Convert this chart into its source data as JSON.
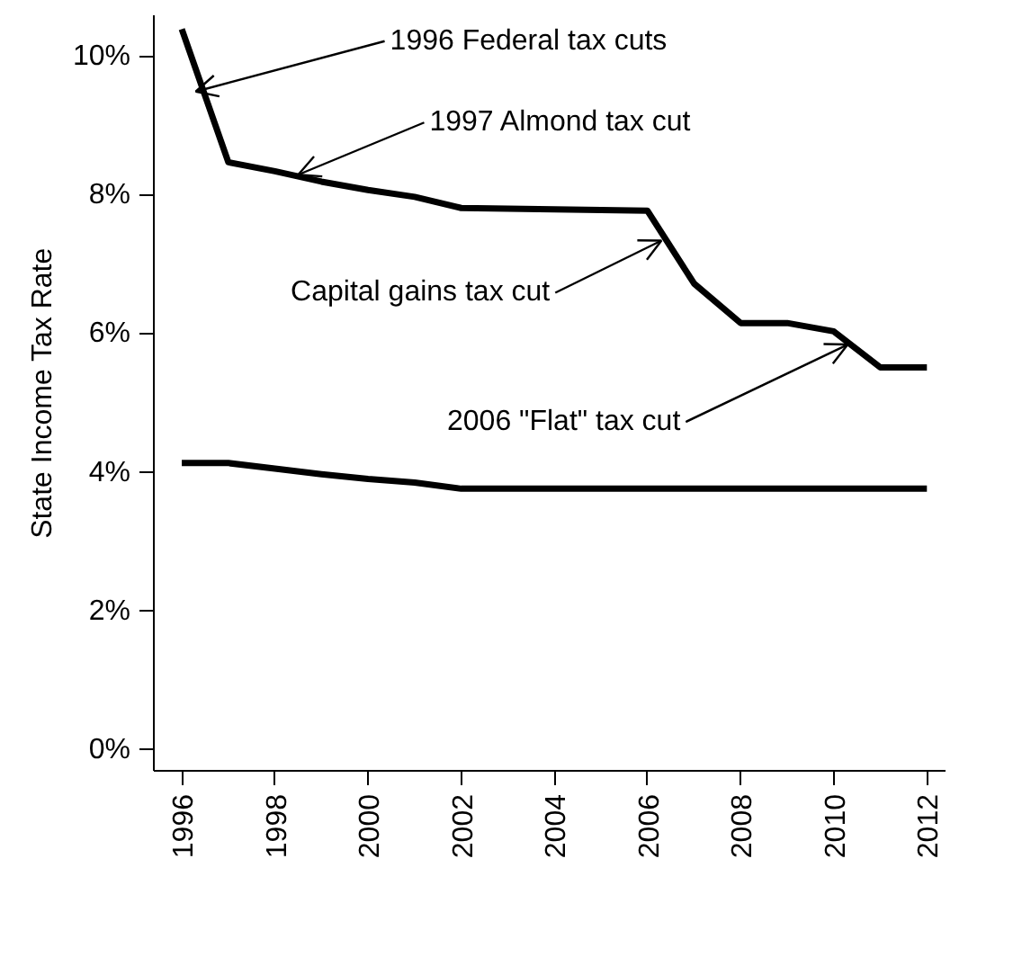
{
  "chart_data": {
    "type": "line",
    "ylabel": "State Income Tax Rate",
    "x": [
      1996,
      1997,
      1998,
      1999,
      2000,
      2001,
      2002,
      2003,
      2004,
      2005,
      2006,
      2007,
      2008,
      2009,
      2010,
      2011,
      2012
    ],
    "series": [
      {
        "color": "#000000",
        "values": [
          10.4,
          8.48,
          8.35,
          8.2,
          8.08,
          7.98,
          7.82,
          7.81,
          7.8,
          7.79,
          7.78,
          6.73,
          6.16,
          6.16,
          6.04,
          5.52,
          5.52
        ]
      },
      {
        "color": "#000000",
        "values": [
          4.14,
          4.14,
          4.06,
          3.98,
          3.91,
          3.86,
          3.77,
          3.77,
          3.77,
          3.77,
          3.77,
          3.77,
          3.77,
          3.77,
          3.77,
          3.77,
          3.77
        ]
      }
    ],
    "xlim": [
      1995.4,
      2012.4
    ],
    "ylim": [
      -0.3,
      10.6
    ],
    "xticks": [
      1996,
      1998,
      2000,
      2002,
      2004,
      2006,
      2008,
      2010,
      2012
    ],
    "yticks": [
      {
        "value": 0,
        "label": "0%"
      },
      {
        "value": 2,
        "label": "2%"
      },
      {
        "value": 4,
        "label": "4%"
      },
      {
        "value": 6,
        "label": "6%"
      },
      {
        "value": 8,
        "label": "8%"
      },
      {
        "value": 10,
        "label": "10%"
      }
    ],
    "annotations": [
      {
        "text": "1996 Federal tax cuts",
        "x": 1996.3,
        "y": 9.5
      },
      {
        "text": "1997 Almond tax cut",
        "x": 1998.5,
        "y": 8.3
      },
      {
        "text": "Capital gains tax cut",
        "x": 2006.3,
        "y": 7.35
      },
      {
        "text": "2006 \"Flat\" tax cut",
        "x": 2010.3,
        "y": 5.85
      }
    ],
    "grid": false,
    "marker": "none",
    "line_style": "solid"
  }
}
